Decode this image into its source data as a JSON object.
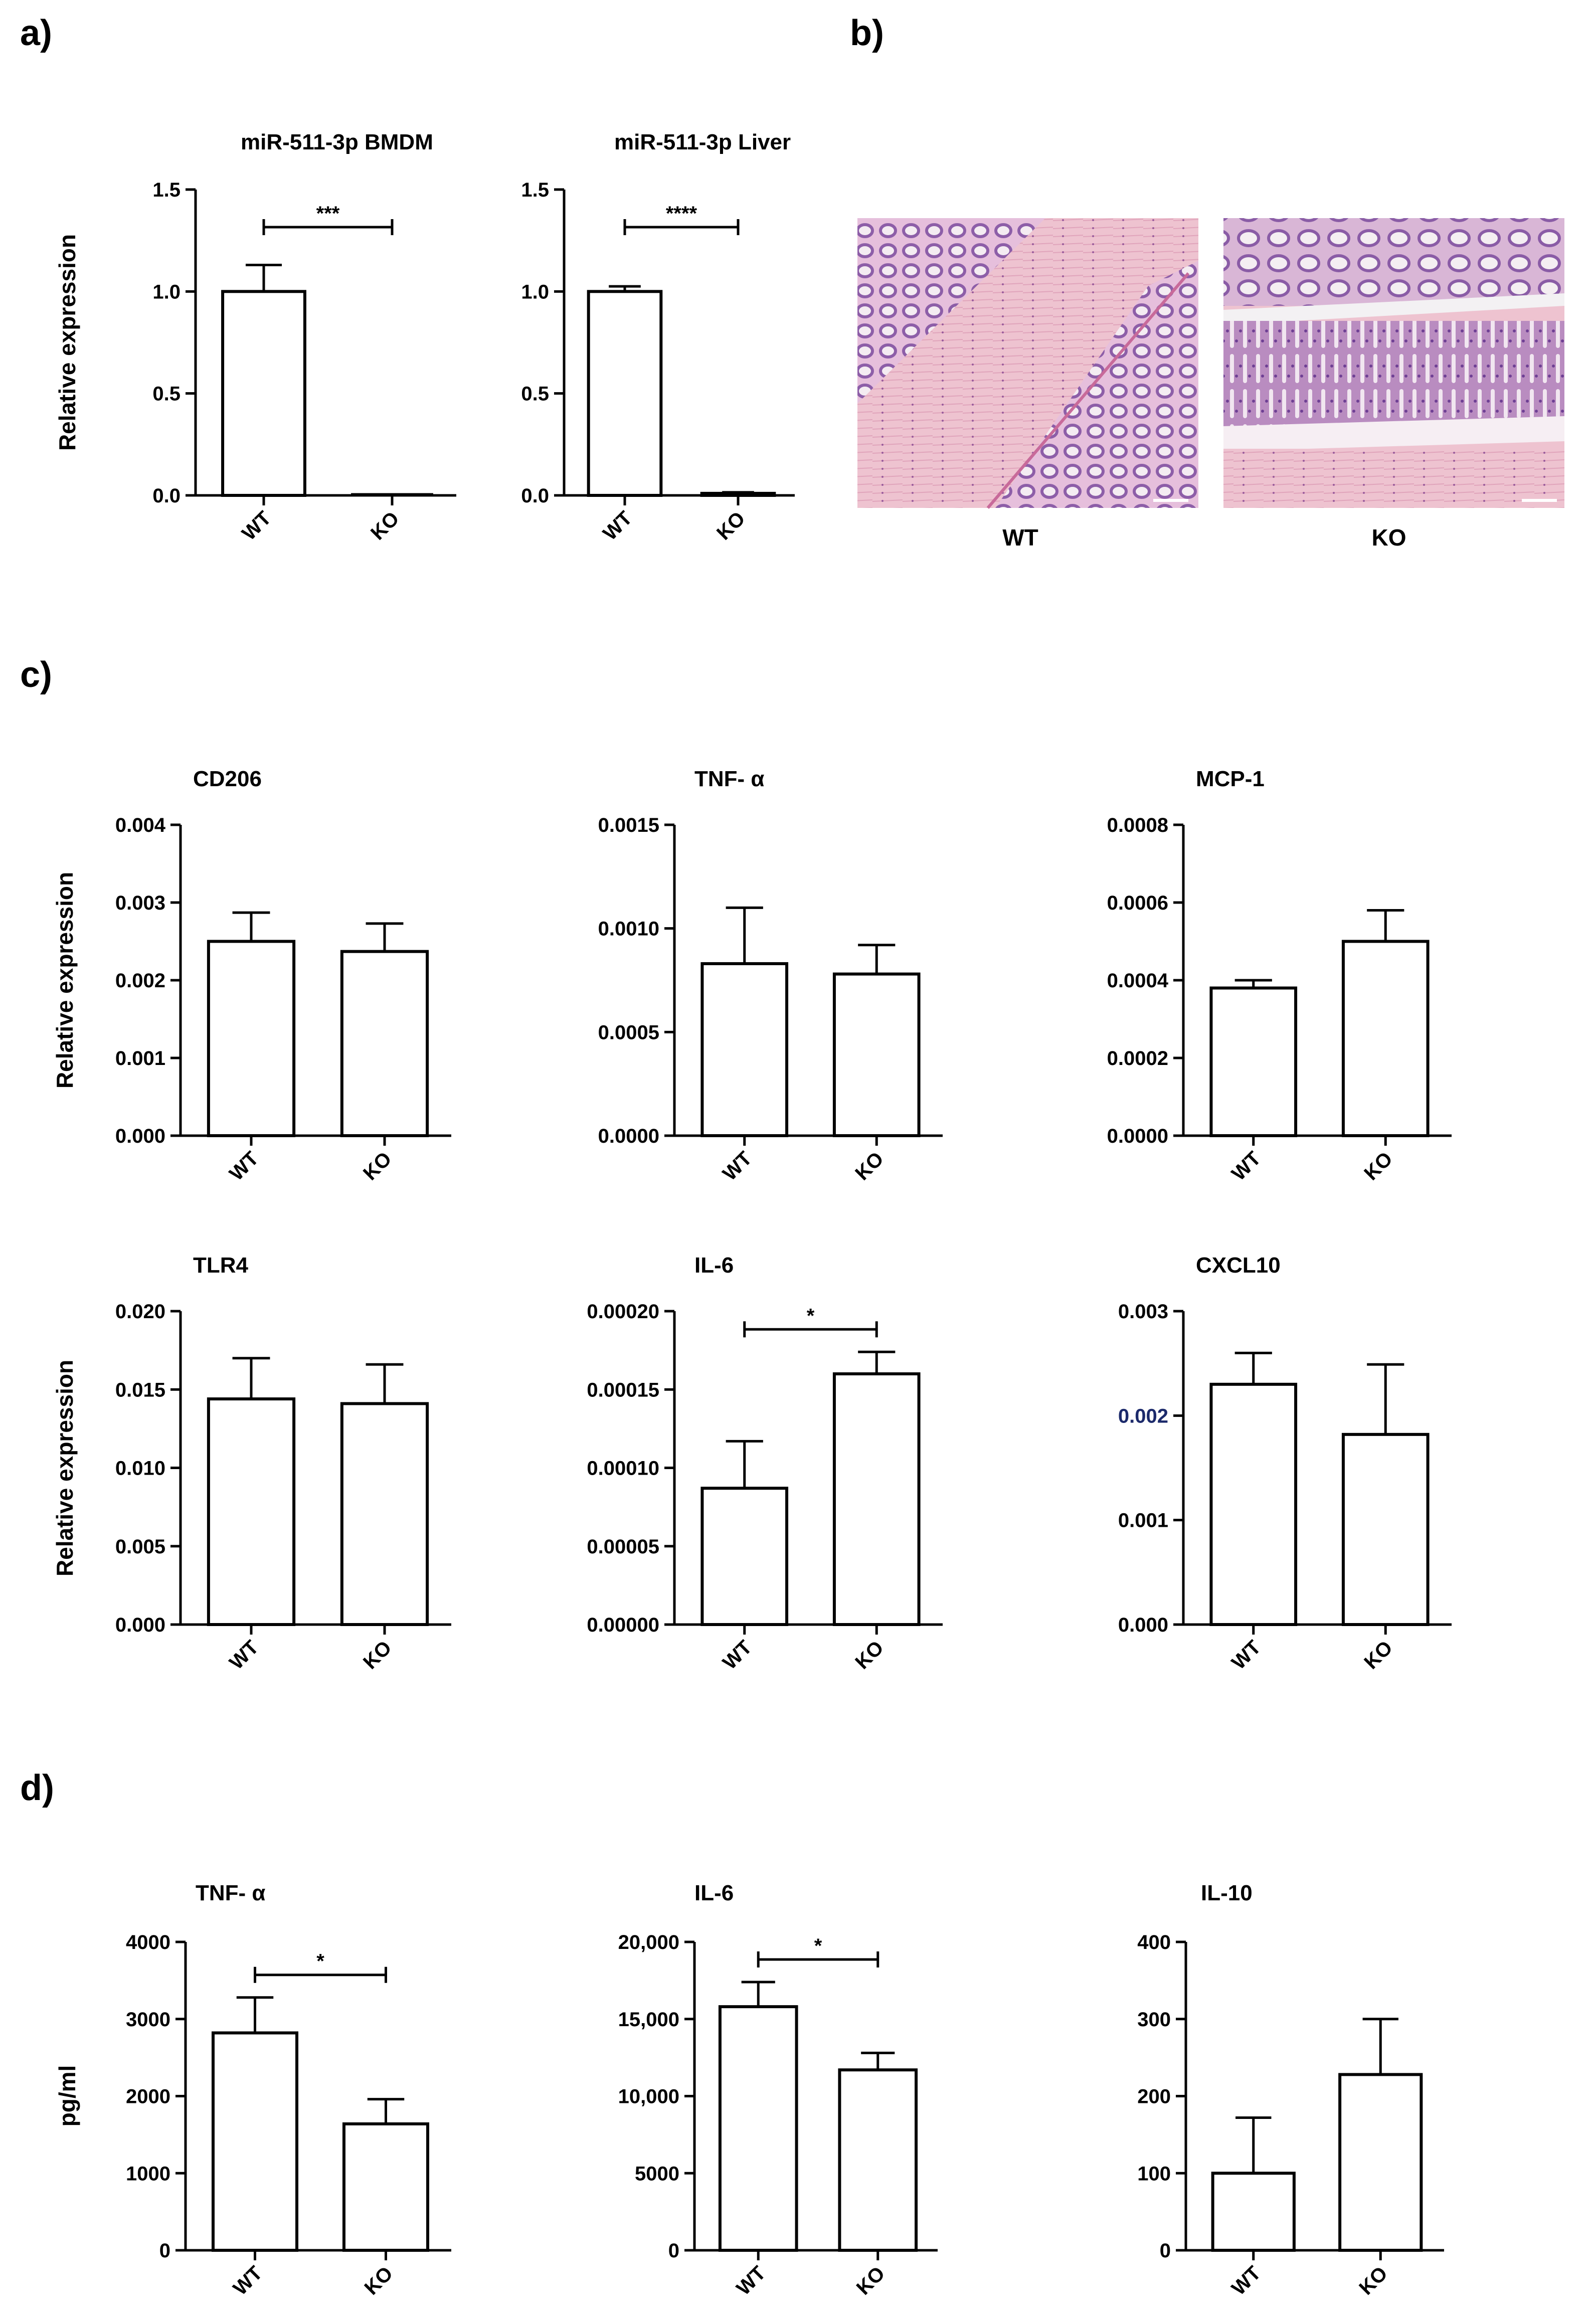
{
  "panels": {
    "a": "a)",
    "b": "b)",
    "c": "c)",
    "d": "d)"
  },
  "histology": {
    "images": [
      {
        "caption": "WT",
        "tissue_color": "#d9a3c6",
        "muscle_color": "#efc2cf"
      },
      {
        "caption": "KO",
        "tissue_color": "#c99cc5",
        "muscle_color": "#efbdcc"
      }
    ]
  },
  "colors": {
    "bar_fill": "#ffffff",
    "bar_stroke": "#000000",
    "text": "#000000",
    "tick_blue": "#1c2a6b"
  },
  "chart_data": [
    {
      "type": "bar",
      "title": "miR-511-3p BMDM",
      "ylabel": "Relative expression",
      "categories": [
        "WT",
        "KO"
      ],
      "values": [
        1.0,
        0.0
      ],
      "errors": [
        0.13,
        0.0
      ],
      "ylim": [
        0,
        1.5
      ],
      "yticks": [
        "0.0",
        "0.5",
        "1.0",
        "1.5"
      ],
      "significance": "***"
    },
    {
      "type": "bar",
      "title": "miR-511-3p Liver",
      "ylabel": "",
      "categories": [
        "WT",
        "KO"
      ],
      "values": [
        1.0,
        0.01
      ],
      "errors": [
        0.025,
        0.005
      ],
      "ylim": [
        0,
        1.5
      ],
      "yticks": [
        "0.0",
        "0.5",
        "1.0",
        "1.5"
      ],
      "significance": "****"
    },
    {
      "type": "bar",
      "title": "CD206",
      "ylabel": "Relative expression",
      "categories": [
        "WT",
        "KO"
      ],
      "values": [
        0.0025,
        0.00237
      ],
      "errors": [
        0.00037,
        0.00036
      ],
      "ylim": [
        0,
        0.004
      ],
      "yticks": [
        "0.000",
        "0.001",
        "0.002",
        "0.003",
        "0.004"
      ],
      "significance": ""
    },
    {
      "type": "bar",
      "title": "TNF- α",
      "ylabel": "",
      "categories": [
        "WT",
        "KO"
      ],
      "values": [
        0.00083,
        0.00078
      ],
      "errors": [
        0.00027,
        0.00014
      ],
      "ylim": [
        0,
        0.0015
      ],
      "yticks": [
        "0.0000",
        "0.0005",
        "0.0010",
        "0.0015"
      ],
      "significance": ""
    },
    {
      "type": "bar",
      "title": "MCP-1",
      "ylabel": "",
      "categories": [
        "WT",
        "KO"
      ],
      "values": [
        0.00038,
        0.0005
      ],
      "errors": [
        2e-05,
        8e-05
      ],
      "ylim": [
        0,
        0.0008
      ],
      "yticks": [
        "0.0000",
        "0.0002",
        "0.0004",
        "0.0006",
        "0.0008"
      ],
      "significance": ""
    },
    {
      "type": "bar",
      "title": "TLR4",
      "ylabel": "Relative expression",
      "categories": [
        "WT",
        "KO"
      ],
      "values": [
        0.0144,
        0.0141
      ],
      "errors": [
        0.0026,
        0.0025
      ],
      "ylim": [
        0,
        0.02
      ],
      "yticks": [
        "0.000",
        "0.005",
        "0.010",
        "0.015",
        "0.020"
      ],
      "significance": ""
    },
    {
      "type": "bar",
      "title": "IL-6",
      "ylabel": "",
      "categories": [
        "WT",
        "KO"
      ],
      "values": [
        8.7e-05,
        0.00016
      ],
      "errors": [
        3e-05,
        1.4e-05
      ],
      "ylim": [
        0,
        0.0002
      ],
      "yticks": [
        "0.00000",
        "0.00005",
        "0.00010",
        "0.00015",
        "0.00020"
      ],
      "significance": "*"
    },
    {
      "type": "bar",
      "title": "CXCL10",
      "ylabel": "",
      "categories": [
        "WT",
        "KO"
      ],
      "values": [
        0.0023,
        0.00182
      ],
      "errors": [
        0.0003,
        0.00067
      ],
      "ylim": [
        0,
        0.003
      ],
      "yticks": [
        "0.000",
        "0.001",
        "0.002",
        "0.003"
      ],
      "significance": "",
      "blue_tick": 2
    },
    {
      "type": "bar",
      "title": "TNF- α",
      "ylabel": "pg/ml",
      "categories": [
        "WT",
        "KO"
      ],
      "values": [
        2820,
        1640
      ],
      "errors": [
        460,
        320
      ],
      "ylim": [
        0,
        4000
      ],
      "yticks": [
        "0",
        "1000",
        "2000",
        "3000",
        "4000"
      ],
      "significance": "*"
    },
    {
      "type": "bar",
      "title": "IL-6",
      "ylabel": "",
      "categories": [
        "WT",
        "KO"
      ],
      "values": [
        15800,
        11700
      ],
      "errors": [
        1600,
        1100
      ],
      "ylim": [
        0,
        20000
      ],
      "yticks": [
        "0",
        "5000",
        "10,000",
        "15,000",
        "20,000"
      ],
      "significance": "*"
    },
    {
      "type": "bar",
      "title": "IL-10",
      "ylabel": "",
      "categories": [
        "WT",
        "KO"
      ],
      "values": [
        100,
        228
      ],
      "errors": [
        72,
        72
      ],
      "ylim": [
        0,
        400
      ],
      "yticks": [
        "0",
        "100",
        "200",
        "300",
        "400"
      ],
      "significance": ""
    }
  ]
}
